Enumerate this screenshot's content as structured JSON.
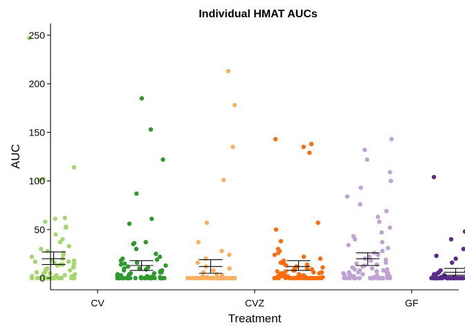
{
  "chart_data": {
    "type": "scatter",
    "title": "Individual HMAT AUCs",
    "xlabel": "Treatment",
    "ylabel": "AUC",
    "ylim": [
      -12,
      262
    ],
    "yticks": [
      0,
      50,
      100,
      150,
      200,
      250
    ],
    "categories": [
      "CV",
      "CVZ",
      "GF"
    ],
    "grid": false,
    "legend": "none",
    "series": [
      {
        "group": "CV",
        "position": 0.72,
        "color": "#a6d76f",
        "mean": 20,
        "ci": [
          14,
          27
        ],
        "points": [
          247,
          114,
          102,
          101,
          62,
          61,
          58,
          53,
          52,
          45,
          40,
          37,
          33,
          30,
          28,
          26,
          24,
          22,
          20,
          18,
          18,
          17,
          17,
          16,
          15,
          14,
          14,
          13,
          12,
          11,
          10,
          9,
          8,
          7,
          6,
          5,
          5,
          4,
          4,
          3,
          3,
          2,
          2,
          1,
          1,
          1,
          0,
          0,
          0,
          0,
          0,
          0,
          0,
          0,
          0,
          0,
          0,
          0,
          0,
          0,
          0,
          0,
          0,
          0,
          0,
          0,
          0,
          0,
          0,
          0
        ]
      },
      {
        "group": "CV",
        "position": 1.28,
        "color": "#2e9a2e",
        "mean": 13,
        "ci": [
          8,
          18
        ],
        "points": [
          185,
          153,
          122,
          87,
          61,
          56,
          37,
          36,
          35,
          30,
          25,
          22,
          20,
          19,
          18,
          16,
          15,
          14,
          13,
          12,
          11,
          10,
          10,
          9,
          8,
          8,
          7,
          7,
          6,
          6,
          5,
          5,
          4,
          4,
          3,
          3,
          2,
          2,
          2,
          1,
          1,
          1,
          1,
          0,
          0,
          0,
          0,
          0,
          0,
          0,
          0,
          0,
          0,
          0,
          0,
          0,
          0,
          0,
          0,
          0,
          0,
          0,
          0,
          0,
          0,
          0,
          0,
          0,
          0,
          0,
          0,
          0,
          0,
          0,
          0
        ]
      },
      {
        "group": "CVZ",
        "position": 1.72,
        "color": "#fbb061",
        "mean": 12,
        "ci": [
          5,
          19
        ],
        "points": [
          213,
          178,
          135,
          101,
          57,
          37,
          28,
          24,
          20,
          16,
          12,
          10,
          8,
          6,
          4,
          3,
          2,
          1,
          1,
          0,
          0,
          0,
          0,
          0,
          0,
          0,
          0,
          0,
          0,
          0,
          0,
          0,
          0,
          0,
          0,
          0,
          0,
          0,
          0,
          0,
          0,
          0,
          0,
          0,
          0,
          0,
          0,
          0,
          0,
          0,
          0,
          0,
          0,
          0,
          0,
          0,
          0,
          0,
          0,
          0
        ]
      },
      {
        "group": "CVZ",
        "position": 2.28,
        "color": "#ff6d0d",
        "mean": 12,
        "ci": [
          8,
          18
        ],
        "points": [
          143,
          138,
          135,
          129,
          57,
          50,
          38,
          30,
          28,
          26,
          24,
          22,
          20,
          18,
          16,
          15,
          14,
          13,
          12,
          11,
          10,
          10,
          9,
          8,
          8,
          7,
          7,
          6,
          6,
          5,
          5,
          4,
          4,
          3,
          3,
          2,
          2,
          2,
          1,
          1,
          1,
          1,
          0,
          0,
          0,
          0,
          0,
          0,
          0,
          0,
          0,
          0,
          0,
          0,
          0,
          0,
          0,
          0,
          0,
          0,
          0,
          0,
          0,
          0,
          0,
          0,
          0,
          0,
          0,
          0
        ]
      },
      {
        "group": "GF",
        "position": 2.72,
        "color": "#bfa4d3",
        "mean": 20,
        "ci": [
          13,
          26
        ],
        "points": [
          143,
          132,
          122,
          109,
          100,
          93,
          84,
          76,
          69,
          63,
          58,
          52,
          47,
          43,
          40,
          37,
          34,
          31,
          28,
          26,
          24,
          22,
          20,
          19,
          18,
          16,
          15,
          14,
          13,
          12,
          11,
          10,
          9,
          9,
          8,
          8,
          7,
          7,
          6,
          6,
          5,
          5,
          4,
          4,
          3,
          3,
          3,
          2,
          2,
          2,
          1,
          1,
          1,
          1,
          0,
          0,
          0,
          0,
          0,
          0,
          0,
          0,
          0,
          0,
          0,
          0,
          0,
          0,
          0,
          0,
          0,
          0,
          0,
          0,
          0,
          0,
          0,
          0,
          0,
          0
        ]
      },
      {
        "group": "GF",
        "position": 3.28,
        "color": "#5a2d8a",
        "mean": 6,
        "ci": [
          3,
          10
        ],
        "points": [
          104,
          48,
          40,
          35,
          30,
          25,
          23,
          21,
          20,
          18,
          16,
          14,
          12,
          11,
          10,
          9,
          8,
          7,
          6,
          5,
          5,
          4,
          4,
          3,
          3,
          2,
          2,
          2,
          1,
          1,
          1,
          1,
          0,
          0,
          0,
          0,
          0,
          0,
          0,
          0,
          0,
          0,
          0,
          0,
          0,
          0,
          0,
          0,
          0,
          0,
          0,
          0,
          0,
          0,
          0,
          0,
          0,
          0,
          0,
          0,
          0,
          0,
          0,
          0,
          0,
          0,
          0,
          0,
          0,
          0,
          0,
          0,
          0,
          0,
          0,
          0,
          0,
          0,
          0,
          0
        ]
      }
    ]
  }
}
